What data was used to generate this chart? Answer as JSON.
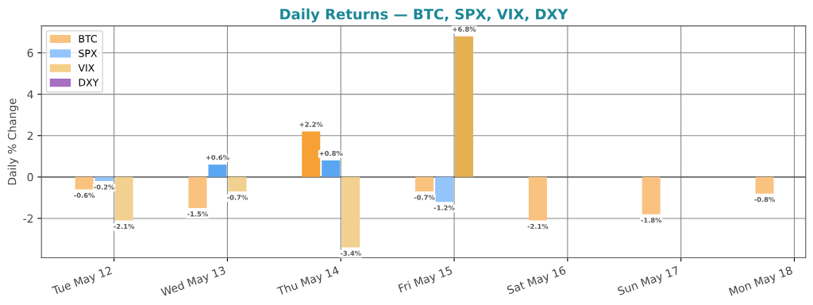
{
  "chart_data": {
    "type": "bar",
    "title": "Daily Returns — BTC, SPX, VIX, DXY",
    "ylabel": "Daily % Change",
    "categories": [
      "Tue May 12",
      "Wed May 13",
      "Thu May 14",
      "Fri May 15",
      "Sat May 16",
      "Sun May 17",
      "Mon May 18"
    ],
    "series": [
      {
        "name": "BTC",
        "color": "#f9c27f",
        "colors": [
          "#f9c27f",
          "#f9c27f",
          "#f7a035",
          "#f9c27f",
          "#f9c27f",
          "#f9c27f",
          "#f9c27f"
        ],
        "values": [
          -0.6,
          -1.5,
          2.2,
          -0.7,
          -2.1,
          -1.8,
          -0.8
        ],
        "value_labels": [
          "-0.6%",
          "-1.5%",
          "+2.2%",
          "-0.7%",
          "-2.1%",
          "-1.8%",
          "-0.8%"
        ]
      },
      {
        "name": "SPX",
        "color": "#93c5fa",
        "colors": [
          "#93c5fa",
          "#5aa6f2",
          "#5aa6f2",
          "#93c5fa",
          null,
          null,
          null
        ],
        "values": [
          -0.2,
          0.6,
          0.8,
          -1.2,
          null,
          null,
          null
        ],
        "value_labels": [
          "-0.2%",
          "+0.6%",
          "+0.8%",
          "-1.2%",
          null,
          null,
          null
        ]
      },
      {
        "name": "VIX",
        "color": "#f5cf8a",
        "colors": [
          "#f2d08f",
          "#f2d08f",
          "#f2d08f",
          "#e4b050",
          null,
          null,
          null
        ],
        "values": [
          -2.1,
          -0.7,
          -3.4,
          6.8,
          null,
          null,
          null
        ],
        "value_labels": [
          "-2.1%",
          "-0.7%",
          "-3.4%",
          "+6.8%",
          null,
          null,
          null
        ]
      },
      {
        "name": "DXY",
        "color": "#a66fc4",
        "values": [
          null,
          null,
          null,
          null,
          null,
          null,
          null
        ]
      }
    ],
    "ylim": [
      -3.9,
      7.3
    ],
    "yticks": [
      -2,
      0,
      2,
      4,
      6
    ],
    "grid": true,
    "legend": "top left"
  }
}
